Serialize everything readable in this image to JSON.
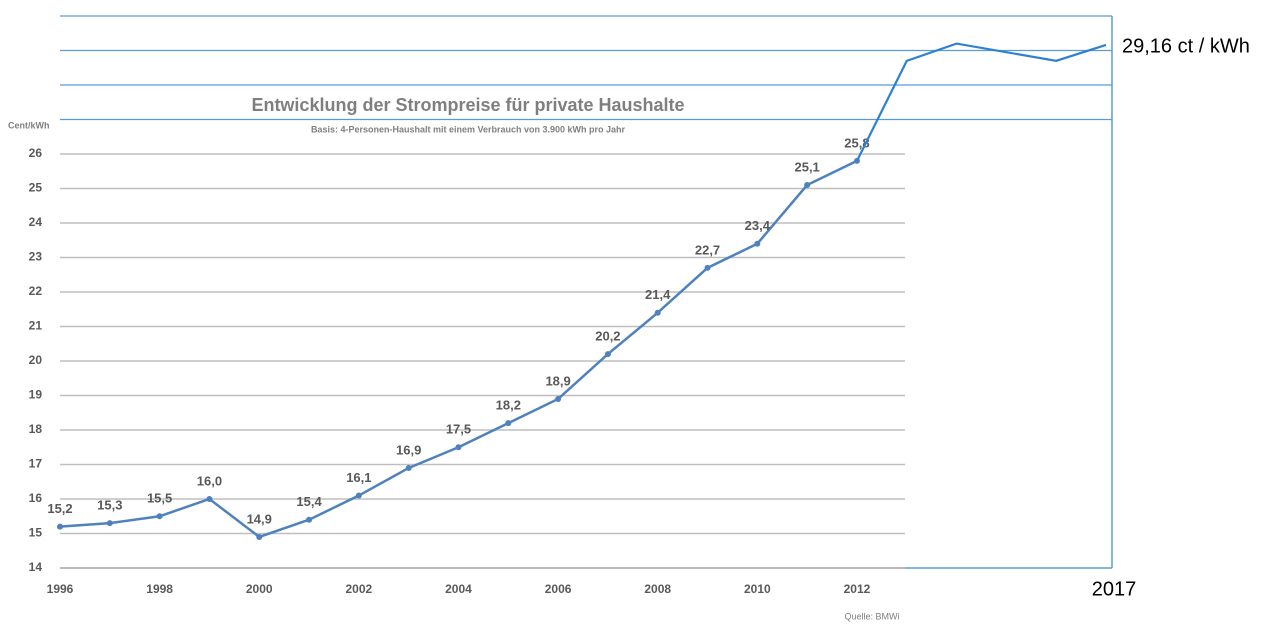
{
  "chart_data": {
    "type": "line",
    "title": "Entwicklung der Strompreise für private Haushalte",
    "subtitle": "Basis: 4-Personen-Haushalt mit einem Verbrauch von 3.900 kWh pro Jahr",
    "y_label": "Cent/kWh",
    "source": "Quelle: BMWi",
    "x": [
      1996,
      1997,
      1998,
      1999,
      2000,
      2001,
      2002,
      2003,
      2004,
      2005,
      2006,
      2007,
      2008,
      2009,
      2010,
      2011,
      2012
    ],
    "values": [
      15.2,
      15.3,
      15.5,
      16.0,
      14.9,
      15.4,
      16.1,
      16.9,
      17.5,
      18.2,
      18.9,
      20.2,
      21.4,
      22.7,
      23.4,
      25.1,
      25.8
    ],
    "value_labels": [
      "15,2",
      "15,3",
      "15,5",
      "16,0",
      "14,9",
      "15,4",
      "16,1",
      "16,9",
      "17,5",
      "18,2",
      "18,9",
      "20,2",
      "21,4",
      "22,7",
      "23,4",
      "25,1",
      "25,8"
    ],
    "color": "#4f81bd",
    "extension": {
      "x": [
        2012,
        2013,
        2014,
        2016,
        2017
      ],
      "values": [
        25.8,
        28.7,
        29.2,
        28.7,
        29.16
      ],
      "end_label": "29,16 ct / kWh",
      "color": "#2f7fd3"
    },
    "xlim": [
      1996,
      2017
    ],
    "xticks": [
      1996,
      1998,
      2000,
      2002,
      2004,
      2006,
      2008,
      2010,
      2012,
      2017
    ],
    "ylim": [
      14,
      30
    ],
    "yticks": [
      14,
      15,
      16,
      17,
      18,
      19,
      20,
      21,
      22,
      23,
      24,
      25,
      26
    ],
    "upper_grid": [
      27,
      28,
      29,
      30
    ],
    "grid": true
  }
}
